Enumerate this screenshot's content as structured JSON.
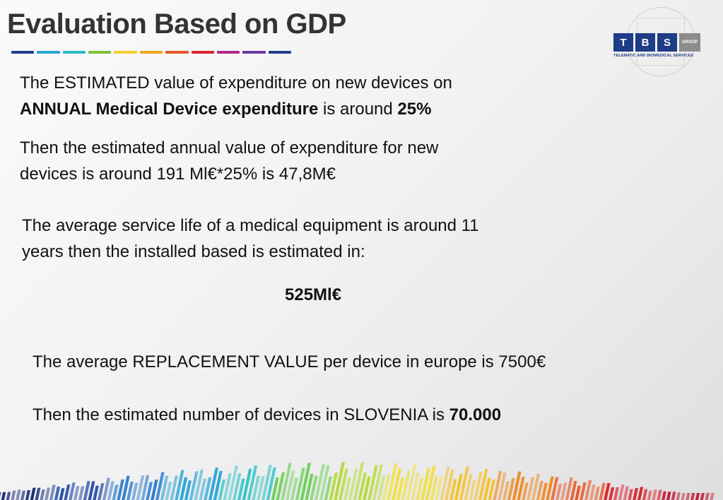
{
  "header": {
    "title": "Evaluation Based on GDP",
    "underline_colors": [
      "#1f3f8f",
      "#2aa6d6",
      "#2fb9c9",
      "#7bbf3a",
      "#f2d22e",
      "#f5a623",
      "#e8572a",
      "#d9262f",
      "#b02a8a",
      "#6a3aa0",
      "#1f3f8f"
    ]
  },
  "logo": {
    "letters": [
      "T",
      "B",
      "S"
    ],
    "group_label": "GROUP",
    "subtitle": "TELEMATIC AND BIOMEDICAL SERVICES",
    "icon": "vitruvian-man-icon"
  },
  "content": {
    "p1": {
      "line1": "The ESTIMATED value of expenditure on new devices on",
      "bold_a": "ANNUAL Medical Device expenditure",
      "mid": " is around ",
      "bold_b": "25%"
    },
    "p2": {
      "line1": "Then the estimated annual value of expenditure for new",
      "line2": "devices is around 191 Ml€*25% is 47,8M€"
    },
    "p3": {
      "line1": "The average service life of a medical equipment is around 11",
      "line2": "years then the installed based is estimated in:"
    },
    "installed_base": "525Ml€",
    "p5": "The average REPLACEMENT VALUE per device in europe is 7500€",
    "p6": {
      "text": "Then the estimated number of devices in SLOVENIA is ",
      "bold": "70.000"
    }
  },
  "decor": {
    "bar_colors": [
      "#1f2f7a",
      "#2a4fa8",
      "#2f7fd0",
      "#2aa6d6",
      "#38c4c8",
      "#6fcf5a",
      "#b8d93a",
      "#f0e040",
      "#f5c02a",
      "#f08a24",
      "#e85a2a",
      "#d9262f",
      "#c0223a"
    ]
  }
}
